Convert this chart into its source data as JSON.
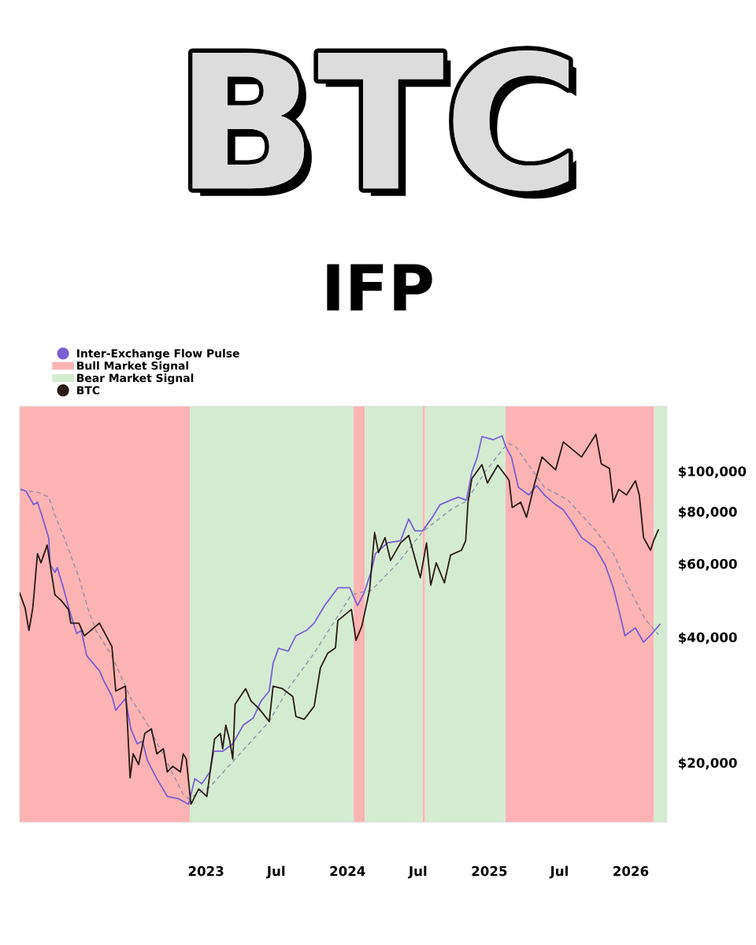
{
  "chart_data": {
    "type": "line",
    "title": "BTC",
    "subtitle": "IFP",
    "xlim": [
      "2021-09-07",
      "2026-04-04"
    ],
    "xticks": [
      {
        "value": "2023-01-01",
        "label": "2023"
      },
      {
        "value": "2023-07-01",
        "label": "Jul"
      },
      {
        "value": "2024-01-01",
        "label": "2024"
      },
      {
        "value": "2024-07-01",
        "label": "Jul"
      },
      {
        "value": "2025-01-01",
        "label": "2025"
      },
      {
        "value": "2025-07-01",
        "label": "Jul"
      },
      {
        "value": "2026-01-01",
        "label": "2026"
      }
    ],
    "log": "y",
    "ylim": [
      14400,
      143000
    ],
    "yticks": [
      {
        "value": 20000,
        "label": "$20,000"
      },
      {
        "value": 40000,
        "label": "$40,000"
      },
      {
        "value": 60000,
        "label": "$60,000"
      },
      {
        "value": 80000,
        "label": "$80,000"
      },
      {
        "value": 100000,
        "label": "$100,000"
      }
    ],
    "grid": false,
    "legend": "top left",
    "marker": "none",
    "bands": [
      {
        "axis": "x",
        "from": "2021-09-07",
        "to": "2022-11-20",
        "label": "Bull Market Signal",
        "color": "#fcb3b3"
      },
      {
        "axis": "x",
        "from": "2022-11-20",
        "to": "2024-01-17",
        "label": "Bear Market Signal",
        "color": "#d4ebd2"
      },
      {
        "axis": "x",
        "from": "2024-01-17",
        "to": "2024-02-15",
        "color": "#fcb3b3"
      },
      {
        "axis": "x",
        "from": "2024-02-15",
        "to": "2024-07-13",
        "color": "#d4ebd2"
      },
      {
        "axis": "x",
        "from": "2024-07-13",
        "to": "2024-07-19",
        "color": "#fcb3b3"
      },
      {
        "axis": "x",
        "from": "2024-07-19",
        "to": "2025-02-12",
        "color": "#d4ebd2"
      },
      {
        "axis": "x",
        "from": "2025-02-12",
        "to": "2026-03-02",
        "color": "#fcb3b3"
      },
      {
        "axis": "x",
        "from": "2026-03-02",
        "to": "2026-04-04",
        "color": "#d4ebd2"
      }
    ],
    "series": [
      {
        "name": "Inter-Exchange Flow Pulse",
        "color": "#7b5fd0",
        "line_style": "solid",
        "x": [
          "2021-09-11",
          "2021-09-23",
          "2021-10-13",
          "2021-10-23",
          "2021-11-03",
          "2021-11-21",
          "2021-11-25",
          "2021-12-07",
          "2021-12-13",
          "2021-12-27",
          "2022-01-13",
          "2022-02-01",
          "2022-02-13",
          "2022-02-27",
          "2022-04-01",
          "2022-04-13",
          "2022-05-03",
          "2022-05-13",
          "2022-06-07",
          "2022-06-21",
          "2022-07-07",
          "2022-07-21",
          "2022-08-03",
          "2022-08-27",
          "2022-09-23",
          "2022-10-21",
          "2022-11-17",
          "2022-12-03",
          "2022-12-21",
          "2023-01-11",
          "2023-01-21",
          "2023-02-13",
          "2023-03-11",
          "2023-04-07",
          "2023-05-03",
          "2023-05-23",
          "2023-06-13",
          "2023-06-23",
          "2023-07-07",
          "2023-08-01",
          "2023-08-21",
          "2023-09-17",
          "2023-10-07",
          "2023-11-03",
          "2023-12-07",
          "2024-01-07",
          "2024-01-27",
          "2024-02-13",
          "2024-03-03",
          "2024-03-13",
          "2024-04-13",
          "2024-05-17",
          "2024-06-07",
          "2024-06-23",
          "2024-07-13",
          "2024-08-07",
          "2024-08-27",
          "2024-09-23",
          "2024-10-13",
          "2024-11-03",
          "2024-11-17",
          "2024-12-01",
          "2024-12-13",
          "2025-01-11",
          "2025-02-03",
          "2025-02-13",
          "2025-02-27",
          "2025-03-17",
          "2025-04-13",
          "2025-05-03",
          "2025-05-23",
          "2025-06-21",
          "2025-07-11",
          "2025-08-07",
          "2025-08-27",
          "2025-10-01",
          "2025-10-27",
          "2025-11-17",
          "2025-12-01",
          "2025-12-17",
          "2026-01-13",
          "2026-02-03",
          "2026-02-23",
          "2026-03-17"
        ],
        "values": [
          90300,
          89600,
          83100,
          84200,
          78500,
          69100,
          59600,
          57200,
          58700,
          53200,
          46600,
          40800,
          41500,
          36100,
          33200,
          31300,
          28900,
          26700,
          28500,
          24100,
          22200,
          22500,
          20200,
          18300,
          16600,
          16400,
          15900,
          18300,
          17800,
          19000,
          21300,
          21300,
          22200,
          24600,
          25600,
          28100,
          29700,
          34600,
          37600,
          37000,
          40300,
          41500,
          43200,
          47600,
          52500,
          52500,
          47600,
          51100,
          57800,
          63400,
          67300,
          68100,
          76800,
          71900,
          71900,
          77500,
          83100,
          85200,
          86600,
          85200,
          99500,
          108100,
          121000,
          119000,
          121500,
          114100,
          108100,
          91500,
          87700,
          92300,
          87700,
          83100,
          80800,
          74300,
          69300,
          65600,
          59600,
          52500,
          46600,
          40300,
          42100,
          38900,
          40600,
          42900
        ]
      },
      {
        "color": "#9090a8",
        "line_style": "dashed",
        "x": [
          "2021-10-01",
          "2021-10-27",
          "2021-11-21",
          "2021-12-07",
          "2022-01-03",
          "2022-02-07",
          "2022-03-03",
          "2022-03-23",
          "2022-05-03",
          "2022-06-21",
          "2022-08-01",
          "2022-09-11",
          "2022-11-03",
          "2022-11-17",
          "2023-01-11",
          "2023-03-17",
          "2023-06-13",
          "2023-08-01",
          "2023-10-07",
          "2024-01-11",
          "2024-02-01",
          "2024-03-03",
          "2024-05-11",
          "2024-07-11",
          "2024-09-23",
          "2024-11-03",
          "2024-12-21",
          "2025-02-07",
          "2025-02-21",
          "2025-03-11",
          "2025-04-13",
          "2025-05-23",
          "2025-07-23",
          "2025-10-01",
          "2025-11-17",
          "2025-12-27",
          "2026-02-07",
          "2026-03-13"
        ],
        "values": [
          89600,
          88800,
          86600,
          78500,
          68100,
          55500,
          46600,
          41500,
          36100,
          28500,
          24900,
          21000,
          16800,
          16400,
          17500,
          20400,
          25100,
          30100,
          36600,
          50500,
          51100,
          51800,
          60300,
          71300,
          80800,
          84800,
          99500,
          113600,
          116500,
          114100,
          103300,
          91500,
          85200,
          72300,
          63400,
          52500,
          44200,
          40600
        ]
      },
      {
        "name": "BTC",
        "color": "#2a1a14",
        "line_style": "solid",
        "x": [
          "2021-09-07",
          "2021-09-21",
          "2021-10-01",
          "2021-10-11",
          "2021-10-23",
          "2021-11-01",
          "2021-11-17",
          "2021-11-27",
          "2021-12-07",
          "2021-12-23",
          "2022-01-11",
          "2022-01-17",
          "2022-02-07",
          "2022-02-21",
          "2022-03-03",
          "2022-04-01",
          "2022-05-03",
          "2022-05-13",
          "2022-06-07",
          "2022-06-13",
          "2022-06-19",
          "2022-06-27",
          "2022-07-11",
          "2022-07-27",
          "2022-08-13",
          "2022-08-27",
          "2022-09-13",
          "2022-09-23",
          "2022-10-07",
          "2022-10-27",
          "2022-11-03",
          "2022-11-11",
          "2022-11-23",
          "2022-12-13",
          "2023-01-03",
          "2023-01-23",
          "2023-02-07",
          "2023-02-13",
          "2023-02-21",
          "2023-03-03",
          "2023-03-11",
          "2023-03-17",
          "2023-04-13",
          "2023-04-27",
          "2023-05-17",
          "2023-06-13",
          "2023-06-23",
          "2023-07-17",
          "2023-08-13",
          "2023-08-21",
          "2023-09-11",
          "2023-10-07",
          "2023-10-23",
          "2023-11-11",
          "2023-12-01",
          "2023-12-07",
          "2024-01-11",
          "2024-01-23",
          "2024-02-07",
          "2024-02-27",
          "2024-03-11",
          "2024-03-21",
          "2024-04-07",
          "2024-04-21",
          "2024-05-17",
          "2024-06-07",
          "2024-07-07",
          "2024-07-23",
          "2024-08-03",
          "2024-08-17",
          "2024-09-07",
          "2024-09-23",
          "2024-10-21",
          "2024-11-01",
          "2024-11-07",
          "2024-11-17",
          "2024-12-13",
          "2024-12-27",
          "2025-01-23",
          "2025-02-21",
          "2025-03-01",
          "2025-03-23",
          "2025-04-07",
          "2025-04-27",
          "2025-05-17",
          "2025-06-21",
          "2025-07-11",
          "2025-08-27",
          "2025-09-17",
          "2025-10-03",
          "2025-10-17",
          "2025-11-07",
          "2025-11-17",
          "2025-12-01",
          "2025-12-21",
          "2026-01-13",
          "2026-01-23",
          "2026-02-03",
          "2026-02-21",
          "2026-03-01",
          "2026-03-13"
        ],
        "values": [
          51000,
          47000,
          41500,
          47000,
          63400,
          60300,
          66500,
          57800,
          50500,
          49000,
          46600,
          43200,
          43200,
          40300,
          41000,
          43200,
          38000,
          29700,
          30500,
          23900,
          18400,
          21000,
          19800,
          23500,
          24100,
          21000,
          21600,
          19000,
          19600,
          19000,
          21000,
          20400,
          15900,
          17300,
          16600,
          22800,
          23500,
          21600,
          24600,
          22600,
          20400,
          27600,
          30100,
          28100,
          27000,
          25100,
          30500,
          30100,
          28800,
          25800,
          25400,
          27300,
          33700,
          36600,
          37700,
          43800,
          46600,
          39300,
          42500,
          51800,
          71300,
          63800,
          69300,
          61100,
          67300,
          70100,
          55500,
          67300,
          53300,
          60300,
          54000,
          62900,
          64600,
          68100,
          84200,
          96000,
          103700,
          93700,
          103300,
          95100,
          81800,
          84200,
          77500,
          92700,
          108100,
          100700,
          117500,
          108100,
          116000,
          122600,
          104100,
          101500,
          84200,
          90400,
          87700,
          94800,
          87700,
          69300,
          64600,
          68100,
          72300
        ]
      }
    ]
  }
}
